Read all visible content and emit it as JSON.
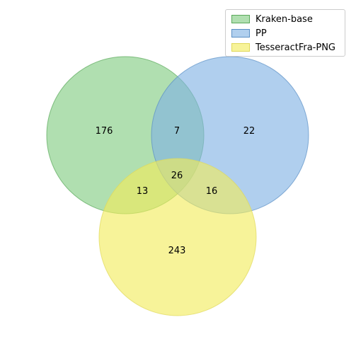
{
  "chart_data": {
    "type": "venn3",
    "sets": [
      {
        "name": "Kraken-base",
        "color": "#7fcc7f"
      },
      {
        "name": "PP",
        "color": "#7fb1e3"
      },
      {
        "name": "TesseractFra-PNG",
        "color": "#f2ec5a"
      }
    ],
    "regions": {
      "only_a": "176",
      "only_b": "22",
      "only_c": "243",
      "a_b": "7",
      "a_c": "13",
      "b_c": "16",
      "a_b_c": "26"
    },
    "legend_position": "top-right"
  }
}
